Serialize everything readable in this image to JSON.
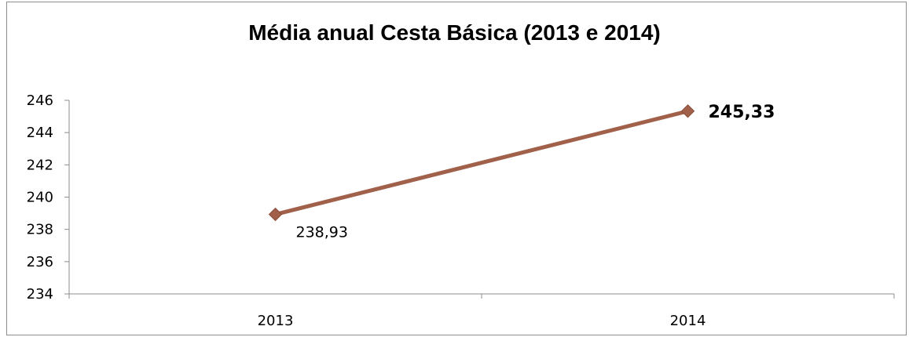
{
  "chart_data": {
    "type": "line",
    "title": "Média anual Cesta Básica (2013 e 2014)",
    "categories": [
      "2013",
      "2014"
    ],
    "series": [
      {
        "values": [
          238.93,
          245.33
        ],
        "data_labels": [
          "238,93",
          "245,33"
        ],
        "color": "#a0604a"
      }
    ],
    "ylim": [
      234,
      246
    ],
    "yticks": [
      234,
      236,
      238,
      240,
      242,
      244,
      246
    ],
    "ytick_labels": [
      "234",
      "236",
      "238",
      "240",
      "242",
      "244",
      "246"
    ],
    "xlabel": "",
    "ylabel": "",
    "grid": false,
    "legend": "none"
  }
}
